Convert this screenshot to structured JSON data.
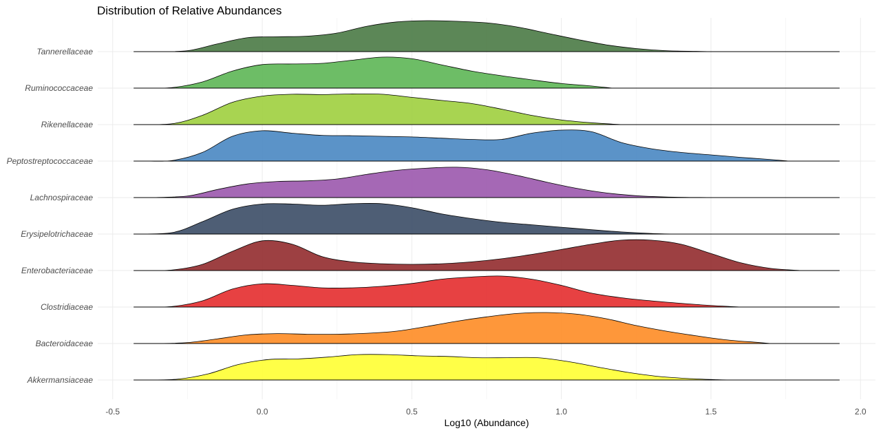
{
  "chart_data": {
    "type": "ridgeline",
    "title": "Distribution of Relative Abundances",
    "xlabel": "Log10 (Abundance)",
    "ylabel": "",
    "xlim": [
      -0.55,
      2.05
    ],
    "x_ticks": [
      -0.5,
      0.0,
      0.5,
      1.0,
      1.5,
      2.0
    ],
    "x_tick_labels": [
      "-0.5",
      "0.0",
      "0.5",
      "1.0",
      "1.5",
      "2.0"
    ],
    "grid": true,
    "legend": "none",
    "categories": [
      "Tannerellaceae",
      "Ruminococcaceae",
      "Rikenellaceae",
      "Peptostreptococcaceae",
      "Lachnospiraceae",
      "Erysipelotrichaceae",
      "Enterobacteriaceae",
      "Clostridiaceae",
      "Bacteroidaceae",
      "Akkermansiaceae"
    ],
    "series": [
      {
        "name": "Tannerellaceae",
        "color": "#4a7a45",
        "baseline_range": [
          -0.43,
          1.93
        ],
        "density": [
          [
            -0.36,
            0.0
          ],
          [
            -0.25,
            0.03
          ],
          [
            -0.15,
            0.25
          ],
          [
            -0.05,
            0.45
          ],
          [
            0.05,
            0.48
          ],
          [
            0.15,
            0.5
          ],
          [
            0.25,
            0.6
          ],
          [
            0.35,
            0.82
          ],
          [
            0.45,
            0.96
          ],
          [
            0.55,
            1.0
          ],
          [
            0.65,
            0.98
          ],
          [
            0.75,
            0.93
          ],
          [
            0.85,
            0.8
          ],
          [
            0.95,
            0.6
          ],
          [
            1.05,
            0.4
          ],
          [
            1.15,
            0.22
          ],
          [
            1.25,
            0.1
          ],
          [
            1.35,
            0.03
          ],
          [
            1.45,
            0.01
          ],
          [
            1.5,
            0.0
          ]
        ]
      },
      {
        "name": "Ruminococcaceae",
        "color": "#5db655",
        "baseline_range": [
          -0.43,
          1.93
        ],
        "density": [
          [
            -0.4,
            0.0
          ],
          [
            -0.3,
            0.02
          ],
          [
            -0.2,
            0.2
          ],
          [
            -0.1,
            0.55
          ],
          [
            0.0,
            0.76
          ],
          [
            0.1,
            0.78
          ],
          [
            0.2,
            0.8
          ],
          [
            0.3,
            0.9
          ],
          [
            0.4,
            1.0
          ],
          [
            0.5,
            0.95
          ],
          [
            0.6,
            0.75
          ],
          [
            0.7,
            0.55
          ],
          [
            0.8,
            0.4
          ],
          [
            0.9,
            0.27
          ],
          [
            1.0,
            0.15
          ],
          [
            1.1,
            0.07
          ],
          [
            1.17,
            0.0
          ]
        ]
      },
      {
        "name": "Rikenellaceae",
        "color": "#9fcf3e",
        "baseline_range": [
          -0.43,
          1.93
        ],
        "density": [
          [
            -0.43,
            0.0
          ],
          [
            -0.3,
            0.03
          ],
          [
            -0.2,
            0.3
          ],
          [
            -0.1,
            0.72
          ],
          [
            0.0,
            0.92
          ],
          [
            0.1,
            0.98
          ],
          [
            0.2,
            0.97
          ],
          [
            0.3,
            0.99
          ],
          [
            0.4,
            0.98
          ],
          [
            0.5,
            0.88
          ],
          [
            0.6,
            0.78
          ],
          [
            0.7,
            0.68
          ],
          [
            0.8,
            0.5
          ],
          [
            0.9,
            0.3
          ],
          [
            1.0,
            0.15
          ],
          [
            1.1,
            0.06
          ],
          [
            1.2,
            0.0
          ]
        ]
      },
      {
        "name": "Peptostreptococcaceae",
        "color": "#4987c2",
        "baseline_range": [
          -0.43,
          1.93
        ],
        "density": [
          [
            -0.39,
            0.0
          ],
          [
            -0.3,
            0.02
          ],
          [
            -0.2,
            0.28
          ],
          [
            -0.1,
            0.8
          ],
          [
            0.0,
            0.98
          ],
          [
            0.1,
            0.9
          ],
          [
            0.2,
            0.83
          ],
          [
            0.3,
            0.82
          ],
          [
            0.4,
            0.8
          ],
          [
            0.5,
            0.78
          ],
          [
            0.6,
            0.74
          ],
          [
            0.7,
            0.7
          ],
          [
            0.8,
            0.7
          ],
          [
            0.9,
            0.9
          ],
          [
            1.0,
            1.0
          ],
          [
            1.1,
            0.95
          ],
          [
            1.2,
            0.6
          ],
          [
            1.3,
            0.4
          ],
          [
            1.4,
            0.28
          ],
          [
            1.5,
            0.2
          ],
          [
            1.6,
            0.12
          ],
          [
            1.7,
            0.05
          ],
          [
            1.76,
            0.0
          ]
        ]
      },
      {
        "name": "Lachnospiraceae",
        "color": "#9b58ad",
        "baseline_range": [
          -0.43,
          1.93
        ],
        "density": [
          [
            -0.37,
            0.0
          ],
          [
            -0.25,
            0.05
          ],
          [
            -0.15,
            0.26
          ],
          [
            -0.05,
            0.44
          ],
          [
            0.05,
            0.52
          ],
          [
            0.15,
            0.54
          ],
          [
            0.25,
            0.6
          ],
          [
            0.35,
            0.75
          ],
          [
            0.45,
            0.88
          ],
          [
            0.55,
            0.95
          ],
          [
            0.65,
            0.98
          ],
          [
            0.75,
            0.9
          ],
          [
            0.85,
            0.72
          ],
          [
            0.95,
            0.5
          ],
          [
            1.05,
            0.3
          ],
          [
            1.15,
            0.15
          ],
          [
            1.25,
            0.06
          ],
          [
            1.35,
            0.02
          ],
          [
            1.45,
            0.005
          ],
          [
            1.55,
            0.0
          ]
        ]
      },
      {
        "name": "Erysipelotrichaceae",
        "color": "#3b4d66",
        "baseline_range": [
          -0.43,
          1.93
        ],
        "density": [
          [
            -0.43,
            0.0
          ],
          [
            -0.3,
            0.05
          ],
          [
            -0.2,
            0.4
          ],
          [
            -0.1,
            0.8
          ],
          [
            0.0,
            0.97
          ],
          [
            0.1,
            0.97
          ],
          [
            0.2,
            0.93
          ],
          [
            0.3,
            0.98
          ],
          [
            0.4,
            0.98
          ],
          [
            0.5,
            0.85
          ],
          [
            0.6,
            0.65
          ],
          [
            0.7,
            0.5
          ],
          [
            0.8,
            0.38
          ],
          [
            0.9,
            0.3
          ],
          [
            1.0,
            0.22
          ],
          [
            1.1,
            0.14
          ],
          [
            1.2,
            0.07
          ],
          [
            1.3,
            0.02
          ],
          [
            1.38,
            0.0
          ]
        ]
      },
      {
        "name": "Enterobacteriaceae",
        "color": "#922b2e",
        "baseline_range": [
          -0.43,
          1.93
        ],
        "density": [
          [
            -0.4,
            0.0
          ],
          [
            -0.3,
            0.02
          ],
          [
            -0.2,
            0.2
          ],
          [
            -0.1,
            0.62
          ],
          [
            0.0,
            0.96
          ],
          [
            0.1,
            0.85
          ],
          [
            0.2,
            0.45
          ],
          [
            0.3,
            0.28
          ],
          [
            0.4,
            0.22
          ],
          [
            0.5,
            0.2
          ],
          [
            0.6,
            0.22
          ],
          [
            0.7,
            0.28
          ],
          [
            0.8,
            0.38
          ],
          [
            0.9,
            0.52
          ],
          [
            1.0,
            0.68
          ],
          [
            1.1,
            0.85
          ],
          [
            1.2,
            0.98
          ],
          [
            1.3,
            0.98
          ],
          [
            1.4,
            0.85
          ],
          [
            1.5,
            0.55
          ],
          [
            1.6,
            0.25
          ],
          [
            1.7,
            0.07
          ],
          [
            1.8,
            0.0
          ]
        ]
      },
      {
        "name": "Clostridiaceae",
        "color": "#e42c2e",
        "baseline_range": [
          -0.43,
          1.93
        ],
        "density": [
          [
            -0.4,
            0.0
          ],
          [
            -0.3,
            0.02
          ],
          [
            -0.2,
            0.2
          ],
          [
            -0.1,
            0.58
          ],
          [
            0.0,
            0.75
          ],
          [
            0.1,
            0.7
          ],
          [
            0.2,
            0.62
          ],
          [
            0.3,
            0.62
          ],
          [
            0.4,
            0.67
          ],
          [
            0.5,
            0.76
          ],
          [
            0.6,
            0.9
          ],
          [
            0.7,
            0.97
          ],
          [
            0.8,
            1.0
          ],
          [
            0.9,
            0.9
          ],
          [
            1.0,
            0.7
          ],
          [
            1.1,
            0.45
          ],
          [
            1.2,
            0.3
          ],
          [
            1.3,
            0.2
          ],
          [
            1.4,
            0.12
          ],
          [
            1.5,
            0.05
          ],
          [
            1.6,
            0.0
          ]
        ]
      },
      {
        "name": "Bacteroidaceae",
        "color": "#fe8c25",
        "baseline_range": [
          -0.43,
          1.93
        ],
        "density": [
          [
            -0.35,
            0.0
          ],
          [
            -0.25,
            0.03
          ],
          [
            -0.15,
            0.15
          ],
          [
            -0.05,
            0.28
          ],
          [
            0.05,
            0.32
          ],
          [
            0.15,
            0.3
          ],
          [
            0.25,
            0.3
          ],
          [
            0.35,
            0.33
          ],
          [
            0.45,
            0.4
          ],
          [
            0.55,
            0.55
          ],
          [
            0.65,
            0.72
          ],
          [
            0.75,
            0.86
          ],
          [
            0.85,
            0.97
          ],
          [
            0.95,
            1.0
          ],
          [
            1.05,
            0.95
          ],
          [
            1.15,
            0.8
          ],
          [
            1.25,
            0.58
          ],
          [
            1.35,
            0.4
          ],
          [
            1.45,
            0.25
          ],
          [
            1.55,
            0.12
          ],
          [
            1.65,
            0.04
          ],
          [
            1.7,
            0.0
          ]
        ]
      },
      {
        "name": "Akkermansiaceae",
        "color": "#ffff33",
        "baseline_range": [
          -0.43,
          1.93
        ],
        "density": [
          [
            -0.38,
            0.0
          ],
          [
            -0.28,
            0.03
          ],
          [
            -0.18,
            0.2
          ],
          [
            -0.08,
            0.5
          ],
          [
            0.02,
            0.66
          ],
          [
            0.12,
            0.68
          ],
          [
            0.22,
            0.74
          ],
          [
            0.32,
            0.82
          ],
          [
            0.42,
            0.82
          ],
          [
            0.52,
            0.78
          ],
          [
            0.62,
            0.76
          ],
          [
            0.72,
            0.72
          ],
          [
            0.82,
            0.72
          ],
          [
            0.92,
            0.72
          ],
          [
            1.02,
            0.6
          ],
          [
            1.12,
            0.42
          ],
          [
            1.22,
            0.25
          ],
          [
            1.32,
            0.12
          ],
          [
            1.42,
            0.05
          ],
          [
            1.52,
            0.01
          ],
          [
            1.56,
            0.0
          ]
        ]
      }
    ]
  }
}
